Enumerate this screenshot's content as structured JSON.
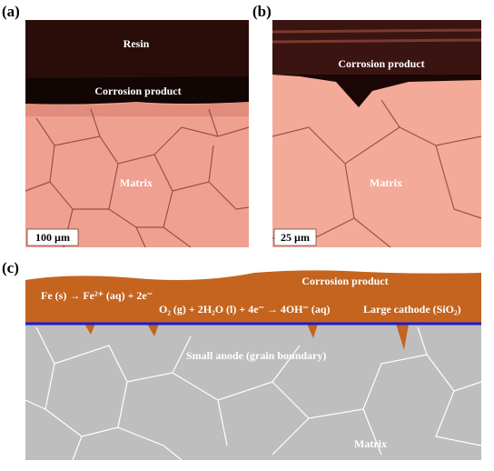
{
  "panel_a": {
    "label": "(a)",
    "resin": "Resin",
    "corrosion": "Corrosion product",
    "matrix": "Matrix",
    "scale": "100 µm"
  },
  "panel_b": {
    "label": "(b)",
    "corrosion": "Corrosion product",
    "matrix": "Matrix",
    "scale": "25 µm"
  },
  "panel_c": {
    "label": "(c)",
    "corrosion": "Corrosion product",
    "anodic": "Fe (s) → Fe²⁺ (aq) + 2e⁻",
    "cathodic": "O₂ (g) + 2H₂O (l) + 4e⁻ → 4OH⁻ (aq)",
    "cathode": "Large cathode (SiO₂)",
    "anode": "Small anode (grain boundary)",
    "matrix": "Matrix"
  }
}
